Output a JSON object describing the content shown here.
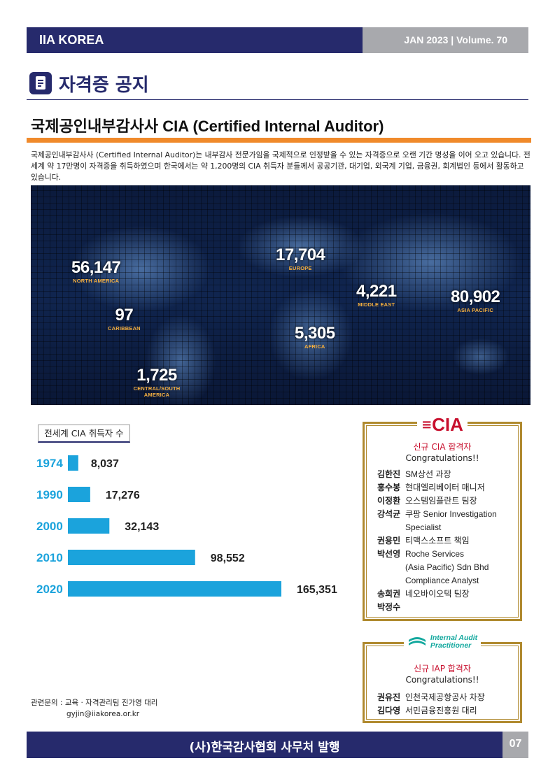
{
  "header": {
    "org": "IIA KOREA",
    "issue": "JAN 2023 | Volume. 70"
  },
  "section": {
    "title": "자격증 공지",
    "icon": "document-icon"
  },
  "article": {
    "title": "국제공인내부감사사 CIA (Certified Internal Auditor)",
    "intro": "국제공인내부감사사 (Certified Internal Auditor)는 내부감사 전문가임을 국제적으로 인정받을 수 있는 자격증으로 오랜 기간 명성을 이어 오고 있습니다. 전세계 약 17만명이 자격증을 취득하였으며 한국에서는 약 1,200명의 CIA 취득자 분들께서 공공기관, 대기업, 외국계 기업, 금융권, 회계법인 등에서 활동하고 있습니다."
  },
  "map": {
    "regions": [
      {
        "value": "56,147",
        "name": "NORTH AMERICA"
      },
      {
        "value": "97",
        "name": "CARIBBEAN"
      },
      {
        "value": "1,725",
        "name": "CENTRAL/SOUTH AMERICA"
      },
      {
        "value": "17,704",
        "name": "EUROPE"
      },
      {
        "value": "4,221",
        "name": "MIDDLE EAST"
      },
      {
        "value": "5,305",
        "name": "AFRICA"
      },
      {
        "value": "80,902",
        "name": "ASIA PACIFIC"
      }
    ]
  },
  "chart_data": {
    "type": "bar",
    "orientation": "horizontal",
    "title": "전세계 CIA 취득자 수",
    "categories": [
      "1974",
      "1990",
      "2000",
      "2010",
      "2020"
    ],
    "values": [
      8037,
      17276,
      32143,
      98552,
      165351
    ],
    "value_labels": [
      "8,037",
      "17,276",
      "32,143",
      "98,552",
      "165,351"
    ],
    "bar_color": "#1ba3dc",
    "category_color": "#1ba3dc",
    "grid": false
  },
  "cia_box": {
    "logo_text": "CIA",
    "subtitle": "신규 CIA 합격자",
    "congrats": "Congratulations!!",
    "people": [
      {
        "name": "김한진",
        "role": [
          "SM상선 과장"
        ]
      },
      {
        "name": "홍수봉",
        "role": [
          "현대엘리베이터 매니저"
        ]
      },
      {
        "name": "이정환",
        "role": [
          "오스템임플란트 팀장"
        ]
      },
      {
        "name": "강석균",
        "role": [
          "쿠팡 Senior Investigation",
          "Specialist"
        ]
      },
      {
        "name": "권용민",
        "role": [
          "티맥스소프트 책임"
        ]
      },
      {
        "name": "박선영",
        "role": [
          "Roche Services",
          "(Asia Pacific) Sdn Bhd",
          "Compliance Analyst"
        ]
      },
      {
        "name": "송희권",
        "role": [
          "네오바이오텍 팀장"
        ]
      },
      {
        "name": "박정수",
        "role": []
      }
    ]
  },
  "iap_box": {
    "logo_line1": "Internal Audit",
    "logo_line2": "Practitioner",
    "subtitle": "신규 IAP 합격자",
    "congrats": "Congratulations!!",
    "people": [
      {
        "name": "권유진",
        "role": [
          "인천국제공항공사 차장"
        ]
      },
      {
        "name": "김다영",
        "role": [
          "서민금융진흥원 대리"
        ]
      }
    ]
  },
  "contact": {
    "line1": "관련문의 : 교육 · 자격관리팀 진가영 대리",
    "line2": "gyjin@iiakorea.or.kr"
  },
  "footer": {
    "publisher": "(사)한국감사협회 사무처 발행",
    "page": "07"
  },
  "colors": {
    "navy": "#262a6c",
    "orange": "#f08a2b",
    "gold": "#b08a2f",
    "red": "#c8102e",
    "teal": "#13a89e"
  }
}
